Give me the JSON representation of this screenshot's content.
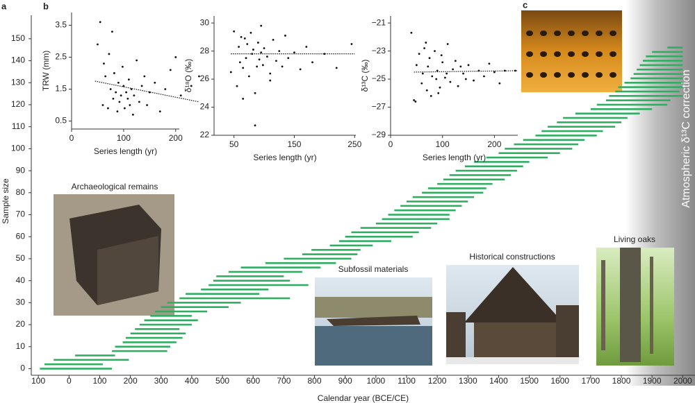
{
  "panels": [
    "a",
    "b",
    "c"
  ],
  "chart_data": [
    {
      "type": "bar",
      "xlabel": "Calendar year (BCE/CE)",
      "ylabel": "Sample size",
      "color": "#2fae62",
      "xlim": [
        -123,
        2040
      ],
      "ylim": [
        -3,
        155
      ],
      "xticks": [
        {
          "value": -100,
          "label": "100"
        },
        0,
        100,
        200,
        300,
        400,
        500,
        600,
        700,
        800,
        900,
        1000,
        1100,
        1200,
        1300,
        1400,
        1500,
        1600,
        1700,
        1800,
        1900,
        2000
      ],
      "yticks": [
        0,
        10,
        20,
        30,
        40,
        50,
        60,
        70,
        80,
        90,
        100,
        110,
        120,
        130,
        140,
        150
      ],
      "samples": [
        0,
        2,
        4,
        6,
        8,
        10,
        12,
        14,
        16,
        18,
        20,
        22,
        24,
        26,
        28,
        30,
        32,
        34,
        36,
        38,
        40,
        42,
        44,
        46,
        48,
        50,
        52,
        54,
        56,
        58,
        60,
        62,
        64,
        66,
        68,
        70,
        72,
        74,
        76,
        78,
        80,
        82,
        84,
        86,
        88,
        90,
        92,
        94,
        96,
        98,
        100,
        102,
        104,
        106,
        108,
        110,
        112,
        114,
        116,
        118,
        120,
        122,
        124,
        126,
        128,
        130,
        132,
        134,
        136,
        138,
        140,
        142,
        144,
        146
      ],
      "start": [
        -95,
        -80,
        -50,
        20,
        140,
        150,
        175,
        185,
        200,
        215,
        230,
        245,
        265,
        280,
        300,
        320,
        360,
        380,
        430,
        455,
        470,
        480,
        520,
        560,
        640,
        700,
        760,
        790,
        850,
        880,
        900,
        920,
        950,
        1000,
        1020,
        1040,
        1060,
        1080,
        1100,
        1120,
        1150,
        1170,
        1200,
        1220,
        1240,
        1260,
        1290,
        1320,
        1360,
        1400,
        1420,
        1450,
        1480,
        1520,
        1540,
        1560,
        1590,
        1610,
        1650,
        1700,
        1720,
        1750,
        1760,
        1780,
        1790,
        1810,
        1830,
        1840,
        1850,
        1860,
        1870,
        1880,
        1900,
        1950
      ],
      "end": [
        140,
        110,
        195,
        150,
        320,
        330,
        350,
        370,
        380,
        360,
        400,
        420,
        400,
        450,
        520,
        560,
        720,
        620,
        650,
        780,
        720,
        700,
        760,
        820,
        870,
        920,
        940,
        950,
        990,
        1050,
        1120,
        1140,
        1180,
        1200,
        1240,
        1240,
        1260,
        1280,
        1300,
        1320,
        1350,
        1360,
        1380,
        1420,
        1440,
        1460,
        1480,
        1500,
        1560,
        1600,
        1640,
        1660,
        1680,
        1720,
        1740,
        1780,
        1800,
        1820,
        1860,
        1900,
        1950,
        1960,
        2000,
        1990,
        2000,
        2000,
        2000,
        2000,
        2000,
        2000,
        2000,
        2000,
        2000,
        2000
      ],
      "annotations": [
        "Archaeological remains",
        "Subfossil materials",
        "Historical constructions",
        "Living oaks",
        "Atmospheric δ¹³C correction"
      ]
    },
    {
      "type": "scatter",
      "xlabel": "Series length (yr)",
      "ylabel": "TRW (mm)",
      "xlim": [
        0,
        207
      ],
      "ylim": [
        0.25,
        3.9
      ],
      "xticks": [
        0,
        100,
        200
      ],
      "yticks": [
        0.5,
        1.5,
        2.5,
        3.5
      ],
      "x": [
        50,
        55,
        60,
        62,
        65,
        70,
        72,
        75,
        78,
        80,
        82,
        85,
        88,
        90,
        92,
        95,
        98,
        100,
        102,
        105,
        108,
        110,
        112,
        115,
        118,
        120,
        125,
        130,
        135,
        140,
        145,
        150,
        160,
        170,
        180,
        190,
        200,
        210,
        230,
        245
      ],
      "values": [
        2.9,
        3.6,
        1.0,
        2.3,
        1.9,
        0.9,
        2.6,
        1.5,
        3.3,
        1.2,
        2.0,
        1.4,
        0.8,
        1.7,
        1.1,
        1.3,
        2.2,
        1.6,
        0.9,
        1.4,
        1.2,
        1.8,
        1.0,
        1.5,
        0.7,
        1.3,
        2.4,
        1.1,
        1.6,
        1.9,
        1.0,
        1.4,
        1.7,
        0.8,
        1.5,
        2.1,
        2.5,
        1.3,
        1.6,
        1.9
      ],
      "trend": {
        "x": [
          45,
          245
        ],
        "values": [
          1.75,
          1.1
        ]
      }
    },
    {
      "type": "scatter",
      "xlabel": "Series length (yr)",
      "ylabel": "δ¹⁸O (‰)",
      "xlim": [
        17,
        252
      ],
      "ylim": [
        22,
        30.5
      ],
      "xticks": [
        50,
        150,
        250
      ],
      "yticks": [
        22,
        24,
        26,
        28,
        30
      ],
      "x": [
        45,
        50,
        55,
        58,
        60,
        62,
        65,
        68,
        70,
        72,
        75,
        78,
        80,
        82,
        85,
        88,
        90,
        92,
        95,
        98,
        100,
        105,
        110,
        115,
        120,
        125,
        130,
        135,
        140,
        150,
        160,
        170,
        180,
        200,
        220,
        245,
        85,
        65,
        110,
        95
      ],
      "values": [
        26.5,
        29.4,
        25.5,
        28.3,
        27.2,
        29.0,
        26.8,
        28.9,
        27.5,
        28.5,
        26.2,
        29.3,
        27.8,
        28.1,
        22.7,
        26.9,
        28.6,
        27.4,
        29.8,
        27.0,
        28.2,
        27.6,
        26.4,
        28.8,
        27.3,
        28.0,
        26.9,
        29.1,
        27.5,
        27.9,
        26.7,
        28.3,
        27.2,
        27.8,
        26.8,
        28.5,
        25.0,
        24.6,
        25.9,
        27.9
      ],
      "trend": {
        "x": [
          45,
          250
        ],
        "values": [
          27.8,
          27.8
        ]
      }
    },
    {
      "type": "scatter",
      "xlabel": "Series length (yr)",
      "ylabel": "δ¹³C (‰)",
      "xlim": [
        0,
        245
      ],
      "ylim": [
        -29,
        -20.5
      ],
      "xticks": [
        0,
        100,
        200
      ],
      "yticks": [
        {
          "value": -21,
          "label": "−21"
        },
        {
          "value": -23,
          "label": "−23"
        },
        {
          "value": -25,
          "label": "−25"
        },
        {
          "value": -27,
          "label": "−27"
        },
        {
          "value": -29,
          "label": "−29"
        }
      ],
      "x": [
        40,
        45,
        50,
        55,
        60,
        62,
        65,
        70,
        72,
        75,
        78,
        80,
        85,
        88,
        90,
        95,
        100,
        105,
        110,
        115,
        120,
        125,
        130,
        140,
        150,
        160,
        170,
        180,
        190,
        200,
        210,
        220,
        240,
        48,
        68,
        92,
        98,
        108,
        135,
        145
      ],
      "values": [
        -21.7,
        -26.5,
        -24.0,
        -23.2,
        -25.3,
        -24.6,
        -22.8,
        -25.8,
        -24.1,
        -23.5,
        -26.2,
        -24.8,
        -23.0,
        -25.0,
        -24.4,
        -25.6,
        -23.8,
        -24.9,
        -22.5,
        -25.2,
        -24.3,
        -23.7,
        -25.5,
        -24.6,
        -24.0,
        -25.1,
        -24.4,
        -24.8,
        -23.9,
        -24.5,
        -25.3,
        -24.4,
        -24.4,
        -26.6,
        -22.4,
        -26.0,
        -23.3,
        -24.6,
        -24.1,
        -25.0
      ],
      "trend": {
        "x": [
          45,
          245
        ],
        "values": [
          -24.5,
          -24.4
        ]
      }
    }
  ]
}
